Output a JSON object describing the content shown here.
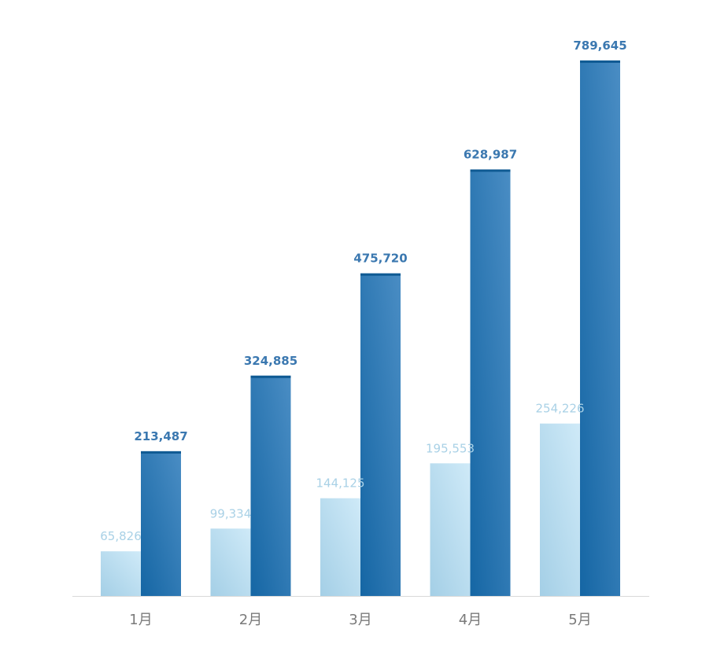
{
  "chart_data": {
    "type": "bar",
    "title": "",
    "xlabel": "",
    "ylabel": "",
    "categories": [
      "1月",
      "2月",
      "3月",
      "4月",
      "5月"
    ],
    "series": [
      {
        "values": [
          65826,
          99334,
          144125,
          195553,
          254226
        ],
        "labels": [
          "65,826",
          "99,334",
          "144,125",
          "195,553",
          "254,226"
        ],
        "color_start": "#a4cfe6",
        "color_end": "#cfeaf8",
        "label_color": "#a9d1e6"
      },
      {
        "values": [
          213487,
          324885,
          475720,
          628987,
          789645
        ],
        "labels": [
          "213,487",
          "324,885",
          "475,720",
          "628,987",
          "789,645"
        ],
        "color_start": "#1566a4",
        "color_end": "#4a8dc4",
        "label_color": "#3b78b0"
      }
    ],
    "ylim": [
      0,
      800000
    ],
    "grid": false,
    "legend": "none",
    "axis_color": "#d9d9d9"
  }
}
